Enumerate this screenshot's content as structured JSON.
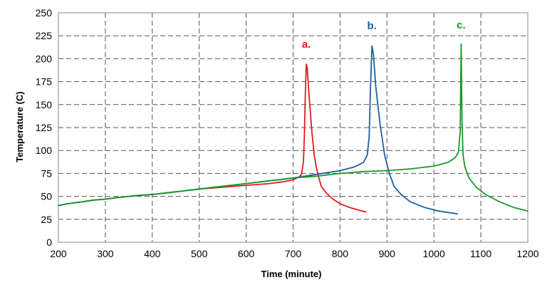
{
  "chart_data": {
    "type": "line",
    "title": "",
    "xlabel": "Time (minute)",
    "ylabel": "Temperature (C)",
    "xlim": [
      200,
      1200
    ],
    "ylim": [
      0,
      250
    ],
    "x_ticks": [
      200,
      300,
      400,
      500,
      600,
      700,
      800,
      900,
      1000,
      1100,
      1200
    ],
    "y_ticks": [
      0,
      25,
      50,
      75,
      100,
      125,
      150,
      175,
      200,
      225,
      250
    ],
    "grid": "dashed",
    "series": [
      {
        "name": "a.",
        "color": "#e31a1c",
        "points": [
          [
            200,
            40
          ],
          [
            220,
            42
          ],
          [
            250,
            44
          ],
          [
            275,
            46
          ],
          [
            300,
            47
          ],
          [
            330,
            49
          ],
          [
            370,
            51
          ],
          [
            400,
            52
          ],
          [
            450,
            55
          ],
          [
            500,
            58
          ],
          [
            550,
            60
          ],
          [
            600,
            62
          ],
          [
            650,
            64
          ],
          [
            680,
            66
          ],
          [
            700,
            68
          ],
          [
            712,
            71
          ],
          [
            718,
            74
          ],
          [
            722,
            88
          ],
          [
            724,
            115
          ],
          [
            726,
            160
          ],
          [
            728,
            194
          ],
          [
            730,
            190
          ],
          [
            734,
            160
          ],
          [
            740,
            120
          ],
          [
            745,
            95
          ],
          [
            750,
            80
          ],
          [
            755,
            70
          ],
          [
            760,
            61
          ],
          [
            770,
            54
          ],
          [
            785,
            47
          ],
          [
            800,
            42
          ],
          [
            820,
            38
          ],
          [
            840,
            35
          ],
          [
            855,
            33
          ]
        ]
      },
      {
        "name": "b.",
        "color": "#1f5fa0",
        "points": [
          [
            200,
            40
          ],
          [
            220,
            42
          ],
          [
            250,
            44
          ],
          [
            275,
            46
          ],
          [
            300,
            47
          ],
          [
            330,
            49
          ],
          [
            370,
            51
          ],
          [
            400,
            52
          ],
          [
            450,
            55
          ],
          [
            500,
            58
          ],
          [
            550,
            61
          ],
          [
            600,
            64
          ],
          [
            650,
            67
          ],
          [
            700,
            70
          ],
          [
            750,
            74
          ],
          [
            800,
            78
          ],
          [
            830,
            82
          ],
          [
            850,
            87
          ],
          [
            858,
            95
          ],
          [
            862,
            115
          ],
          [
            865,
            170
          ],
          [
            868,
            214
          ],
          [
            871,
            205
          ],
          [
            876,
            170
          ],
          [
            885,
            130
          ],
          [
            895,
            95
          ],
          [
            905,
            75
          ],
          [
            915,
            61
          ],
          [
            930,
            52
          ],
          [
            950,
            44
          ],
          [
            980,
            38
          ],
          [
            1010,
            34
          ],
          [
            1050,
            31
          ]
        ]
      },
      {
        "name": "c.",
        "color": "#1a9a2a",
        "points": [
          [
            200,
            40
          ],
          [
            220,
            42
          ],
          [
            250,
            44
          ],
          [
            275,
            46
          ],
          [
            300,
            47
          ],
          [
            330,
            49
          ],
          [
            370,
            51
          ],
          [
            400,
            52
          ],
          [
            450,
            55
          ],
          [
            500,
            58
          ],
          [
            550,
            61
          ],
          [
            600,
            64
          ],
          [
            650,
            67
          ],
          [
            700,
            70
          ],
          [
            750,
            72
          ],
          [
            800,
            75
          ],
          [
            850,
            77
          ],
          [
            900,
            78
          ],
          [
            950,
            80
          ],
          [
            1000,
            83
          ],
          [
            1030,
            87
          ],
          [
            1045,
            92
          ],
          [
            1052,
            98
          ],
          [
            1056,
            120
          ],
          [
            1058,
            216
          ],
          [
            1060,
            130
          ],
          [
            1062,
            95
          ],
          [
            1066,
            82
          ],
          [
            1075,
            70
          ],
          [
            1090,
            60
          ],
          [
            1110,
            52
          ],
          [
            1140,
            44
          ],
          [
            1170,
            38
          ],
          [
            1200,
            34
          ]
        ]
      }
    ],
    "annotations": [
      {
        "text": "a.",
        "x": 728,
        "y": 212,
        "color": "#e31a1c"
      },
      {
        "text": "b.",
        "x": 868,
        "y": 232,
        "color": "#1f5fa0"
      },
      {
        "text": "c.",
        "x": 1058,
        "y": 233,
        "color": "#1a9a2a"
      }
    ]
  }
}
